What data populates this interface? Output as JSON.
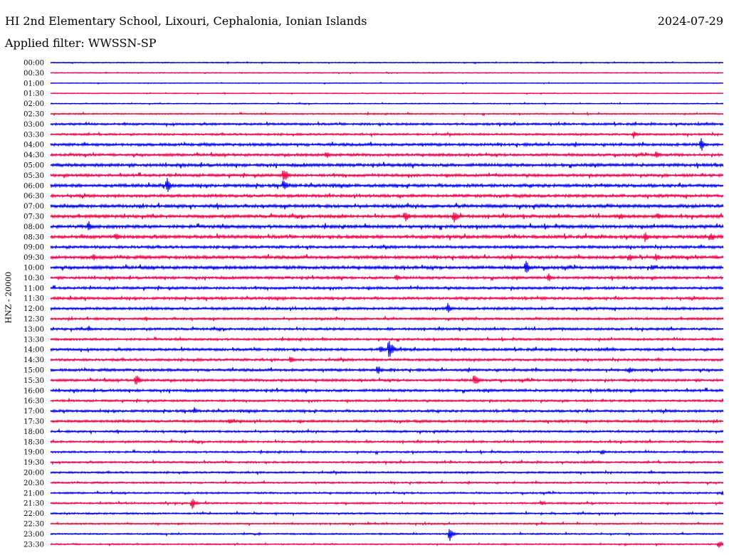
{
  "header": {
    "title": "HI 2nd Elementary School, Lixouri, Cephalonia, Ionian Islands",
    "date": "2024-07-29",
    "filter": "Applied filter: WWSSN-SP"
  },
  "chart_data": {
    "type": "line",
    "subtype": "helicorder",
    "ylabel": "HNZ - 20000",
    "colors": {
      "even": "#0000ee",
      "odd": "#ee0044"
    },
    "rows": [
      "00:00",
      "00:30",
      "01:00",
      "01:30",
      "02:00",
      "02:30",
      "03:00",
      "03:30",
      "04:00",
      "04:30",
      "05:00",
      "05:30",
      "06:00",
      "06:30",
      "07:00",
      "07:30",
      "08:00",
      "08:30",
      "09:00",
      "09:30",
      "10:00",
      "10:30",
      "11:00",
      "11:30",
      "12:00",
      "12:30",
      "13:00",
      "13:30",
      "14:00",
      "14:30",
      "15:00",
      "15:30",
      "16:00",
      "16:30",
      "17:00",
      "17:30",
      "18:00",
      "18:30",
      "19:00",
      "19:30",
      "20:00",
      "20:30",
      "21:00",
      "21:30",
      "22:00",
      "22:30",
      "23:00",
      "23:30"
    ],
    "noise_level": [
      0.6,
      0.5,
      0.5,
      0.5,
      0.6,
      0.8,
      1.3,
      1.2,
      1.6,
      1.5,
      1.8,
      1.6,
      1.8,
      1.7,
      1.9,
      1.8,
      1.9,
      1.9,
      1.6,
      1.8,
      1.8,
      1.5,
      1.5,
      1.5,
      1.5,
      1.3,
      1.4,
      1.3,
      1.5,
      1.4,
      1.5,
      1.4,
      1.5,
      1.2,
      1.4,
      1.4,
      1.2,
      1.2,
      1.1,
      1.1,
      1.1,
      1.0,
      1.0,
      1.0,
      1.0,
      0.9,
      0.9,
      0.8
    ],
    "events": [
      {
        "row": "03:30",
        "minute": 26.0,
        "amplitude": 6
      },
      {
        "row": "04:00",
        "minute": 29.0,
        "amplitude": 12
      },
      {
        "row": "04:30",
        "minute": 12.3,
        "amplitude": 7
      },
      {
        "row": "04:30",
        "minute": 27.0,
        "amplitude": 8
      },
      {
        "row": "05:30",
        "minute": 10.4,
        "amplitude": 14
      },
      {
        "row": "06:00",
        "minute": 5.2,
        "amplitude": 13
      },
      {
        "row": "06:00",
        "minute": 10.4,
        "amplitude": 11
      },
      {
        "row": "07:30",
        "minute": 15.8,
        "amplitude": 11
      },
      {
        "row": "07:30",
        "minute": 18.0,
        "amplitude": 12
      },
      {
        "row": "07:30",
        "minute": 25.4,
        "amplitude": 7
      },
      {
        "row": "07:30",
        "minute": 27.1,
        "amplitude": 7
      },
      {
        "row": "08:00",
        "minute": 1.7,
        "amplitude": 9
      },
      {
        "row": "08:30",
        "minute": 2.9,
        "amplitude": 8
      },
      {
        "row": "08:30",
        "minute": 26.5,
        "amplitude": 9
      },
      {
        "row": "08:30",
        "minute": 29.4,
        "amplitude": 9
      },
      {
        "row": "09:30",
        "minute": 1.9,
        "amplitude": 6
      },
      {
        "row": "09:30",
        "minute": 25.8,
        "amplitude": 8
      },
      {
        "row": "09:30",
        "minute": 27.0,
        "amplitude": 8
      },
      {
        "row": "10:00",
        "minute": 21.2,
        "amplitude": 12
      },
      {
        "row": "10:00",
        "minute": 26.8,
        "amplitude": 7
      },
      {
        "row": "10:30",
        "minute": 15.4,
        "amplitude": 7
      },
      {
        "row": "10:30",
        "minute": 22.2,
        "amplitude": 8
      },
      {
        "row": "12:00",
        "minute": 17.7,
        "amplitude": 9
      },
      {
        "row": "13:00",
        "minute": 1.7,
        "amplitude": 5
      },
      {
        "row": "14:00",
        "minute": 14.7,
        "amplitude": 7
      },
      {
        "row": "14:00",
        "minute": 15.1,
        "amplitude": 18
      },
      {
        "row": "14:30",
        "minute": 10.7,
        "amplitude": 8
      },
      {
        "row": "15:00",
        "minute": 14.6,
        "amplitude": 8
      },
      {
        "row": "15:00",
        "minute": 25.8,
        "amplitude": 7
      },
      {
        "row": "15:30",
        "minute": 3.8,
        "amplitude": 11
      },
      {
        "row": "15:30",
        "minute": 18.9,
        "amplitude": 12
      },
      {
        "row": "17:00",
        "minute": 6.4,
        "amplitude": 6
      },
      {
        "row": "17:30",
        "minute": 8.0,
        "amplitude": 5
      },
      {
        "row": "19:00",
        "minute": 24.6,
        "amplitude": 5
      },
      {
        "row": "21:00",
        "minute": 30.0,
        "amplitude": 5
      },
      {
        "row": "21:30",
        "minute": 6.3,
        "amplitude": 11
      },
      {
        "row": "21:30",
        "minute": 21.9,
        "amplitude": 5
      },
      {
        "row": "23:00",
        "minute": 17.8,
        "amplitude": 12
      },
      {
        "row": "23:30",
        "minute": 29.8,
        "amplitude": 7
      }
    ],
    "xlim_minutes": [
      0,
      30
    ]
  }
}
